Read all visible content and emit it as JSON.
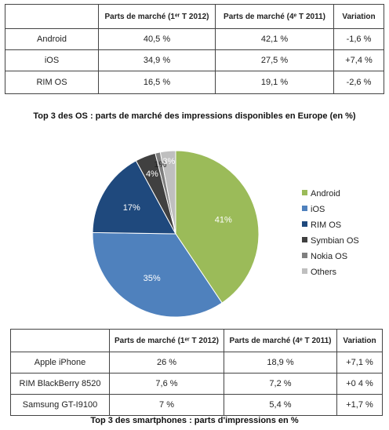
{
  "os_table": {
    "headers": [
      "",
      "Parts de marché (1ᵉʳ T 2012)",
      "Parts de marché (4ᵉ T 2011)",
      "Variation"
    ],
    "rows": [
      [
        "Android",
        "40,5 %",
        "42,1 %",
        "-1,6 %"
      ],
      [
        "iOS",
        "34,9 %",
        "27,5 %",
        "+7,4 %"
      ],
      [
        "RIM OS",
        "16,5 %",
        "19,1 %",
        "-2,6 %"
      ]
    ],
    "caption": "Top 3 des OS : parts de marché des impressions disponibles en Europe (en %)"
  },
  "chart_data": {
    "type": "pie",
    "categories": [
      "Android",
      "iOS",
      "RIM OS",
      "Symbian OS",
      "Nokia OS",
      "Others"
    ],
    "values": [
      41,
      35,
      17,
      4,
      1,
      3
    ],
    "labels": [
      "41%",
      "35%",
      "17%",
      "4%",
      "1%",
      "3%"
    ],
    "colors": [
      "#9bbb59",
      "#4f81bd",
      "#1f497d",
      "#404040",
      "#7f7f7f",
      "#bfbfbf"
    ],
    "legend": "right"
  },
  "smartphone_table": {
    "headers": [
      "",
      "Parts de marché (1ᵉʳ T 2012)",
      "Parts de marché (4ᵉ T 2011)",
      "Variation"
    ],
    "rows": [
      [
        "Apple iPhone",
        "26 %",
        "18,9 %",
        "+7,1 %"
      ],
      [
        "RIM BlackBerry 8520",
        "7,6 %",
        "7,2 %",
        "+0 4 %"
      ],
      [
        "Samsung GT-I9100",
        "7 %",
        "5,4 %",
        "+1,7 %"
      ]
    ],
    "caption": "Top 3 des smartphones : parts d'impressions en %"
  }
}
